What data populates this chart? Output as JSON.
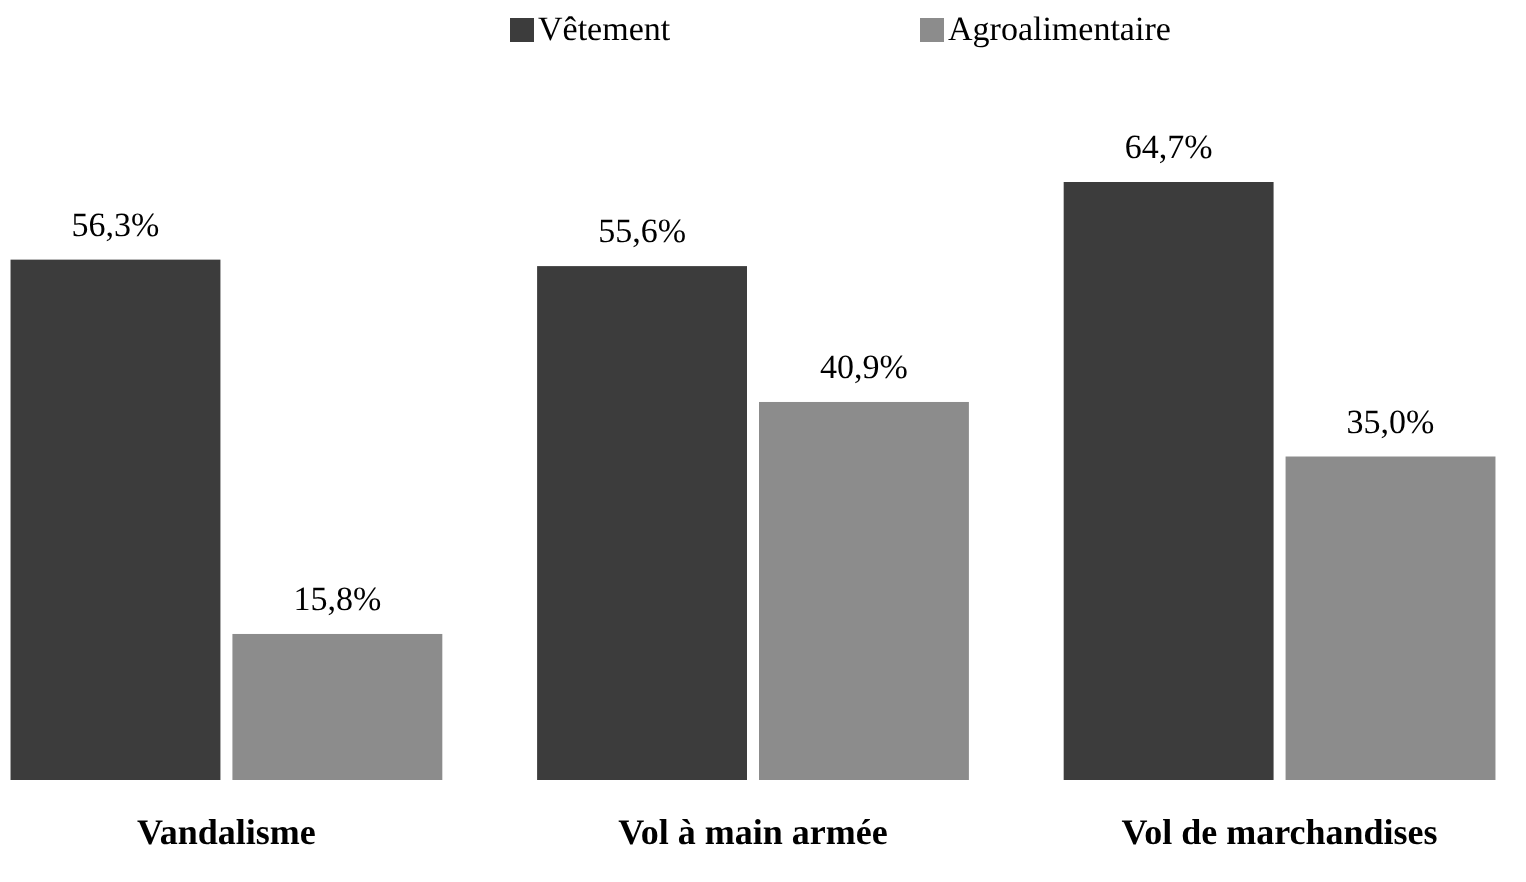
{
  "chart_data": {
    "type": "bar",
    "categories": [
      "Vandalisme",
      "Vol à main armée",
      "Vol de marchandises"
    ],
    "series": [
      {
        "name": "Vêtement",
        "color": "#3c3c3c",
        "values": [
          56.3,
          55.6,
          64.7
        ],
        "value_labels": [
          "56,3%",
          "55,6%",
          "64,7%"
        ]
      },
      {
        "name": "Agroalimentaire",
        "color": "#8c8c8c",
        "values": [
          15.8,
          40.9,
          35.0
        ],
        "value_labels": [
          "15,8%",
          "40,9%",
          "35,0%"
        ]
      }
    ],
    "legend": "top"
  }
}
